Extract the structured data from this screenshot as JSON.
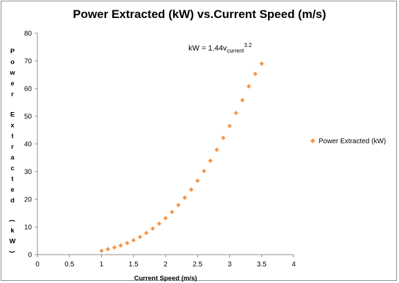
{
  "chart_data": {
    "type": "scatter",
    "title": "Power Extracted (kW) vs.Current Speed (m/s)",
    "xlabel": "Current Speed (m/s)",
    "ylabel": "Power Extracted (kW)",
    "xlim": [
      0,
      4
    ],
    "ylim": [
      0,
      80
    ],
    "x_ticks": [
      "0",
      "0.5",
      "1",
      "1.5",
      "2",
      "2.5",
      "3",
      "3.5",
      "4"
    ],
    "y_ticks": [
      "0",
      "10",
      "20",
      "30",
      "40",
      "50",
      "60",
      "70",
      "80"
    ],
    "grid": false,
    "legend_position": "right",
    "marker_color": "#F79646",
    "annotation": {
      "prefix": "kW = 1.44v",
      "subscript": "current",
      "superscript": "3.2"
    },
    "series": [
      {
        "name": "Power Extracted (kW)",
        "x": [
          1.0,
          1.1,
          1.2,
          1.3,
          1.4,
          1.5,
          1.6,
          1.7,
          1.8,
          1.9,
          2.0,
          2.1,
          2.2,
          2.3,
          2.4,
          2.5,
          2.6,
          2.7,
          2.8,
          2.9,
          3.0,
          3.1,
          3.2,
          3.3,
          3.4,
          3.5
        ],
        "y": [
          1.4,
          2.0,
          2.6,
          3.3,
          4.2,
          5.2,
          6.4,
          7.8,
          9.4,
          11.2,
          13.2,
          15.4,
          17.9,
          20.6,
          23.5,
          26.7,
          30.2,
          33.9,
          37.9,
          42.2,
          46.5,
          51.2,
          55.8,
          60.8,
          65.3,
          69.0
        ]
      }
    ]
  }
}
